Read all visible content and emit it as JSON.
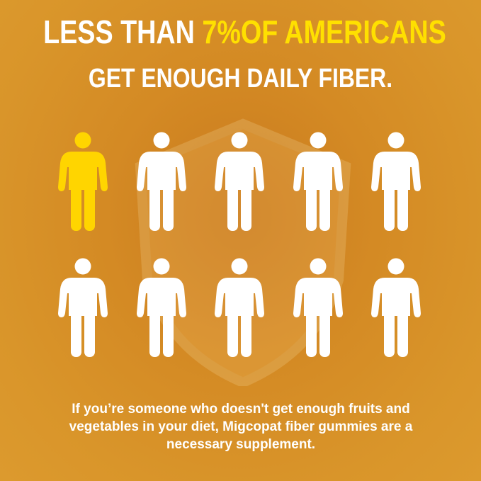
{
  "headline": {
    "prefix": "LESS THAN ",
    "highlight": "7%OF AMERICANS",
    "line2": "GET ENOUGH DAILY FIBER."
  },
  "pictogram": {
    "total": 10,
    "highlighted": 1,
    "rows": 2,
    "icon": "person-icon",
    "highlight_color": "#ffd500",
    "default_color": "#ffffff"
  },
  "footer": {
    "lines": [
      "If you’re someone who doesn't get enough fruits and",
      "vegetables in your diet, Migcopat fiber gummies are a",
      "necessary supplement."
    ]
  },
  "colors": {
    "background": "#d48a24",
    "accent": "#ffe000",
    "text": "#ffffff"
  }
}
